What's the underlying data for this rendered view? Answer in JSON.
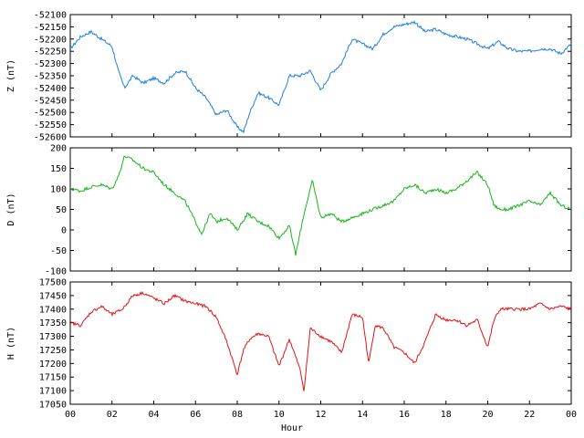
{
  "chart_data": [
    {
      "type": "line",
      "ylabel": "Z (nT)",
      "ylim": [
        -52600,
        -52100
      ],
      "yticks": [
        -52100,
        -52150,
        -52200,
        -52250,
        -52300,
        -52350,
        -52400,
        -52450,
        -52500,
        -52550,
        -52600
      ],
      "color": "#1f7fe0",
      "x": [
        0,
        0.5,
        1,
        1.5,
        2,
        2.3,
        2.6,
        3,
        3.5,
        4,
        4.5,
        5,
        5.5,
        6,
        6.5,
        7,
        7.5,
        8,
        8.3,
        8.6,
        9,
        9.5,
        10,
        10.5,
        11,
        11.5,
        12,
        12.5,
        13,
        13.5,
        14,
        14.5,
        15,
        15.5,
        16,
        16.5,
        17,
        17.5,
        18,
        18.5,
        19,
        19.5,
        20,
        20.5,
        21,
        21.5,
        22,
        22.5,
        23,
        23.5,
        24
      ],
      "values": [
        -52240,
        -52190,
        -52170,
        -52200,
        -52230,
        -52330,
        -52400,
        -52350,
        -52380,
        -52360,
        -52380,
        -52340,
        -52330,
        -52400,
        -52440,
        -52510,
        -52490,
        -52560,
        -52580,
        -52500,
        -52420,
        -52440,
        -52470,
        -52350,
        -52350,
        -52330,
        -52410,
        -52340,
        -52300,
        -52200,
        -52220,
        -52240,
        -52180,
        -52150,
        -52140,
        -52130,
        -52170,
        -52160,
        -52180,
        -52190,
        -52200,
        -52220,
        -52240,
        -52210,
        -52240,
        -52250,
        -52250,
        -52240,
        -52240,
        -52260,
        -52220
      ]
    },
    {
      "type": "line",
      "ylabel": "D (nT)",
      "ylim": [
        -100,
        200
      ],
      "yticks": [
        200,
        150,
        100,
        50,
        0,
        -50,
        -100
      ],
      "color": "#19b419",
      "x": [
        0,
        0.5,
        1,
        1.5,
        2,
        2.3,
        2.6,
        3,
        3.5,
        4,
        4.5,
        5,
        5.5,
        6,
        6.3,
        6.7,
        7,
        7.5,
        8,
        8.5,
        9,
        9.5,
        10,
        10.5,
        10.8,
        11.2,
        11.6,
        12,
        12.5,
        13,
        13.5,
        14,
        14.5,
        15,
        15.5,
        16,
        16.5,
        17,
        17.5,
        18,
        18.5,
        19,
        19.5,
        20,
        20.3,
        20.6,
        21,
        21.5,
        22,
        22.5,
        23,
        23.5,
        24
      ],
      "values": [
        100,
        95,
        105,
        110,
        100,
        130,
        180,
        170,
        150,
        140,
        110,
        90,
        70,
        20,
        -10,
        40,
        20,
        30,
        0,
        40,
        20,
        10,
        -20,
        10,
        -60,
        40,
        120,
        30,
        40,
        20,
        30,
        40,
        50,
        60,
        70,
        100,
        110,
        90,
        100,
        90,
        100,
        120,
        140,
        110,
        60,
        50,
        50,
        60,
        70,
        60,
        90,
        60,
        50
      ]
    },
    {
      "type": "line",
      "ylabel": "H (nT)",
      "ylim": [
        17050,
        17500
      ],
      "yticks": [
        17500,
        17450,
        17400,
        17350,
        17300,
        17250,
        17200,
        17150,
        17100,
        17050
      ],
      "color": "#e01414",
      "x": [
        0,
        0.5,
        1,
        1.5,
        2,
        2.5,
        3,
        3.5,
        4,
        4.5,
        5,
        5.5,
        6,
        6.5,
        7,
        7.5,
        8,
        8.3,
        8.6,
        9,
        9.5,
        10,
        10.5,
        11,
        11.2,
        11.5,
        12,
        12.5,
        13,
        13.5,
        14,
        14.3,
        14.6,
        15,
        15.5,
        16,
        16.5,
        17,
        17.5,
        18,
        18.5,
        19,
        19.5,
        20,
        20.3,
        20.6,
        21,
        21.5,
        22,
        22.5,
        23,
        23.5,
        24
      ],
      "values": [
        17350,
        17340,
        17390,
        17410,
        17380,
        17400,
        17450,
        17460,
        17440,
        17420,
        17450,
        17430,
        17420,
        17410,
        17370,
        17280,
        17160,
        17250,
        17290,
        17310,
        17300,
        17190,
        17290,
        17180,
        17100,
        17330,
        17300,
        17280,
        17240,
        17380,
        17370,
        17200,
        17340,
        17330,
        17260,
        17240,
        17200,
        17280,
        17380,
        17360,
        17360,
        17340,
        17360,
        17260,
        17360,
        17400,
        17400,
        17400,
        17400,
        17420,
        17400,
        17410,
        17400
      ]
    }
  ],
  "xaxis": {
    "xlabel": "Hour",
    "xlim": [
      0,
      24
    ],
    "ticklabels": [
      "00",
      "02",
      "04",
      "06",
      "08",
      "10",
      "12",
      "14",
      "16",
      "18",
      "20",
      "22",
      "00"
    ]
  }
}
